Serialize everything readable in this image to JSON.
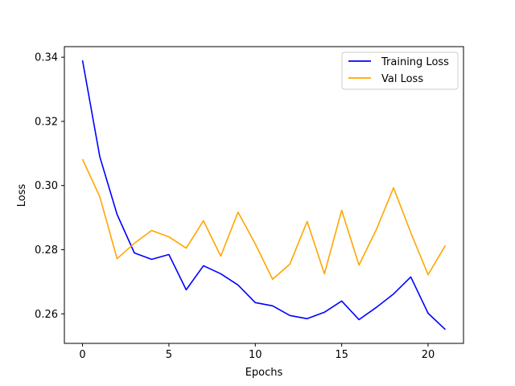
{
  "chart_data": {
    "type": "line",
    "xlabel": "Epochs",
    "ylabel": "Loss",
    "xlim": [
      -1.05,
      22.05
    ],
    "ylim": [
      0.2508,
      0.3433
    ],
    "x_ticks": [
      0,
      5,
      10,
      15,
      20
    ],
    "y_ticks": [
      0.26,
      0.28,
      0.3,
      0.32,
      0.34
    ],
    "x_tick_labels": [
      "0",
      "5",
      "10",
      "15",
      "20"
    ],
    "y_tick_labels": [
      "0.26",
      "0.28",
      "0.30",
      "0.32",
      "0.34"
    ],
    "grid": false,
    "legend_position": "top-right",
    "x": [
      0,
      1,
      2,
      3,
      4,
      5,
      6,
      7,
      8,
      9,
      10,
      11,
      12,
      13,
      14,
      15,
      16,
      17,
      18,
      19,
      20,
      21
    ],
    "series": [
      {
        "name": "Training Loss",
        "color": "#0000ff",
        "values": [
          0.339,
          0.309,
          0.291,
          0.279,
          0.277,
          0.2785,
          0.2675,
          0.275,
          0.2725,
          0.269,
          0.2635,
          0.2625,
          0.2595,
          0.2585,
          0.2605,
          0.264,
          0.2582,
          0.262,
          0.2662,
          0.2715,
          0.2602,
          0.2551
        ]
      },
      {
        "name": "Val Loss",
        "color": "#ffa500",
        "values": [
          0.3082,
          0.2965,
          0.2772,
          0.282,
          0.286,
          0.284,
          0.2805,
          0.289,
          0.278,
          0.2917,
          0.2818,
          0.2708,
          0.2755,
          0.2888,
          0.2725,
          0.2923,
          0.2752,
          0.2862,
          0.2993,
          0.2853,
          0.2722,
          0.2813
        ]
      }
    ]
  }
}
